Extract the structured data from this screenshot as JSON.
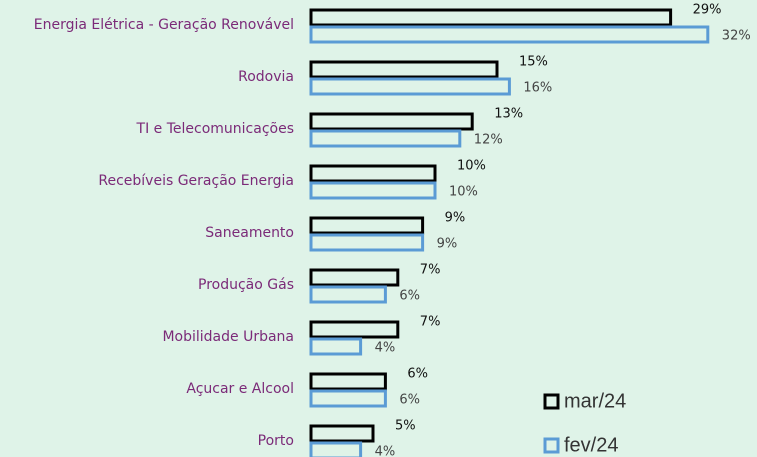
{
  "chart_data": {
    "type": "bar",
    "orientation": "horizontal",
    "categories": [
      "Energia Elétrica - Geração Renovável",
      "Rodovia",
      "TI e Telecomunicações",
      "Recebíveis Geração Energia",
      "Saneamento",
      "Produção Gás",
      "Mobilidade Urbana",
      "Açucar e Alcool",
      "Porto"
    ],
    "series": [
      {
        "name": "mar/24",
        "color": "#000000",
        "values": [
          29,
          15,
          13,
          10,
          9,
          7,
          7,
          6,
          5
        ],
        "value_labels": [
          "29%",
          "15%",
          "13%",
          "10%",
          "9%",
          "7%",
          "7%",
          "6%",
          "5%"
        ]
      },
      {
        "name": "fev/24",
        "color": "#5b9bd5",
        "values": [
          32,
          16,
          12,
          10,
          9,
          6,
          4,
          6,
          4
        ],
        "value_labels": [
          "32%",
          "16%",
          "12%",
          "10%",
          "9%",
          "6%",
          "4%",
          "6%",
          "4%"
        ]
      }
    ]
  }
}
